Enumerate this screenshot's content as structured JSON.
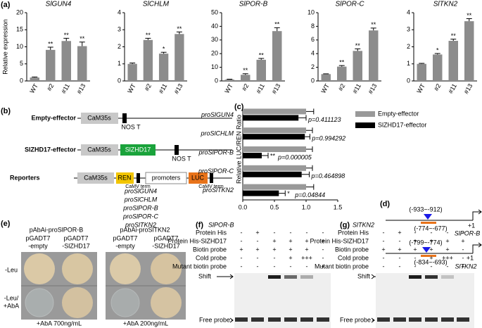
{
  "panel_labels": [
    "(a)",
    "(b)",
    "(c)",
    "(d)",
    "(e)",
    "(f)",
    "(g)"
  ],
  "chart_data": [
    {
      "type": "bar",
      "title": "SlGUN4",
      "ylabel": "Relative expression",
      "categories": [
        "WT",
        "#2",
        "#11",
        "#13"
      ],
      "values": [
        1.0,
        9.1,
        11.7,
        10.2
      ],
      "errors": [
        0.15,
        0.8,
        0.8,
        1.2
      ],
      "sig": [
        null,
        "**",
        "**",
        "**"
      ],
      "color": "#8c8c8c",
      "ylim": [
        0,
        20
      ],
      "yticks": [
        0,
        5,
        10,
        15,
        20
      ]
    },
    {
      "type": "bar",
      "title": "SlCHLM",
      "categories": [
        "WT",
        "#2",
        "#11",
        "#13"
      ],
      "values": [
        1.0,
        2.4,
        1.6,
        2.75
      ],
      "errors": [
        0.05,
        0.1,
        0.08,
        0.12
      ],
      "sig": [
        null,
        "**",
        "*",
        "**"
      ],
      "color": "#8c8c8c",
      "ylim": [
        0,
        4
      ],
      "yticks": [
        0,
        1,
        2,
        3,
        4
      ]
    },
    {
      "type": "bar",
      "title": "SlPOR-B",
      "categories": [
        "WT",
        "#2",
        "#11",
        "#13"
      ],
      "values": [
        1.0,
        4.5,
        15.5,
        36.5
      ],
      "errors": [
        0.3,
        0.8,
        1.0,
        2.5
      ],
      "sig": [
        null,
        "**",
        "**",
        "**"
      ],
      "color": "#8c8c8c",
      "ylim": [
        0,
        50
      ],
      "yticks": [
        0,
        10,
        20,
        30,
        40,
        50
      ]
    },
    {
      "type": "bar",
      "title": "SlPOR-C",
      "categories": [
        "WT",
        "#2",
        "#11",
        "#13"
      ],
      "values": [
        1.0,
        2.1,
        4.4,
        7.4
      ],
      "errors": [
        0.05,
        0.15,
        0.3,
        0.35
      ],
      "sig": [
        null,
        "**",
        "**",
        "**"
      ],
      "color": "#8c8c8c",
      "ylim": [
        0,
        10
      ],
      "yticks": [
        0,
        2,
        4,
        6,
        8,
        10
      ]
    },
    {
      "type": "bar",
      "title": "SlTKN2",
      "categories": [
        "WT",
        "#2",
        "#11",
        "#13"
      ],
      "values": [
        1.0,
        1.55,
        2.35,
        3.5
      ],
      "errors": [
        0.03,
        0.06,
        0.1,
        0.15
      ],
      "sig": [
        null,
        "*",
        "**",
        "**"
      ],
      "color": "#8c8c8c",
      "ylim": [
        0,
        4
      ],
      "yticks": [
        0,
        1,
        2,
        3,
        4
      ]
    },
    {
      "type": "hbar",
      "ylabel": "Relative LUC/REN Ratio",
      "categories": [
        "proSlGUN4",
        "proSlCHLM",
        "proSlPOR-B",
        "proSlPOR-C",
        "proSlTKN2"
      ],
      "series": [
        {
          "name": "Empty-effector",
          "color": "#999999",
          "values": [
            1,
            1,
            1,
            1,
            1
          ],
          "errors": [
            0.12,
            0.1,
            0.1,
            0.1,
            0.12
          ]
        },
        {
          "name": "SlZHD17-effector",
          "color": "#000000",
          "values": [
            0.88,
            0.98,
            0.3,
            0.93,
            0.57
          ],
          "errors": [
            0.12,
            0.08,
            0.1,
            0.12,
            0.1
          ],
          "sig": [
            null,
            null,
            "**",
            null,
            "*"
          ],
          "p_labels": [
            "p=0.411123",
            "p=0.994292",
            "p=0.000005",
            "p=0.464898",
            "p=0.04844"
          ]
        }
      ],
      "xlim": [
        0,
        1.5
      ],
      "xticks": [
        {
          "value": 0,
          "label": "0.0"
        },
        {
          "value": 0.5,
          "label": "0.5"
        },
        {
          "value": 1,
          "label": "1.0"
        },
        {
          "value": 1.5,
          "label": "1.5"
        }
      ]
    }
  ],
  "diagram_b": {
    "rows": [
      {
        "label": "Empty-effector",
        "parts": [
          "CaM35s",
          "NOS T"
        ]
      },
      {
        "label": "SlZHD17-effector",
        "parts": [
          "CaM35s",
          "SlZHD17",
          "NOS T"
        ]
      },
      {
        "label": "Reporters",
        "parts": [
          "CaM35s",
          "REN",
          "CaMV term",
          "promoters",
          "LUC",
          "CaMV term"
        ]
      }
    ],
    "promoters": [
      "proSlGUN4",
      "proSlCHLM",
      "proSlPOR-B",
      "proSlPOR-C",
      "proSlTKN2"
    ]
  },
  "diagram_d": [
    {
      "site": "(-933~-912)",
      "probe": "(-774~-677)",
      "tss": "+1",
      "gene": "SlPOR-B"
    },
    {
      "site": "(-799~-774)",
      "probe": "(-834~-693)",
      "tss": "+1",
      "gene": "SlTKN2"
    }
  ],
  "panel_e": {
    "groups": [
      "pAbAi-proSlPOR-B",
      "pAbAi-proSlTKN2"
    ],
    "columns": [
      [
        "pGADT7",
        "-empty"
      ],
      [
        "pGADT7",
        "-SlZHD17"
      ],
      [
        "pGADT7",
        "-empty"
      ],
      [
        "pGADT7",
        "-SlZHD17"
      ]
    ],
    "rows": [
      [
        "-Leu"
      ],
      [
        "-Leu/",
        "+AbA"
      ]
    ],
    "footers": [
      "+AbA 700ng/mL",
      "+AbA 200ng/mL"
    ]
  },
  "panel_f": {
    "title": "SlPOR-B",
    "rows": [
      {
        "label": "Protein His",
        "marks": [
          "-",
          "+",
          "-",
          "-",
          "-",
          "-"
        ]
      },
      {
        "label": "Protein His-SlZHD17",
        "marks": [
          "-",
          "-",
          "+",
          "+",
          "+",
          "+"
        ]
      },
      {
        "label": "Biotin probe",
        "marks": [
          "+",
          "+",
          "+",
          "+",
          "+",
          "-"
        ]
      },
      {
        "label": "Cold probe",
        "marks": [
          "-",
          "-",
          "-",
          "+",
          "+++",
          "-"
        ]
      },
      {
        "label": "Mutant biotin probe",
        "marks": [
          "-",
          "-",
          "-",
          "-",
          "-",
          "+"
        ]
      }
    ],
    "shift": "Shift",
    "free": "Free probe"
  },
  "panel_g": {
    "title": "SlTKN2",
    "rows": [
      {
        "label": "Protein His",
        "marks": [
          "-",
          "+",
          "-",
          "-",
          "-",
          "-"
        ]
      },
      {
        "label": "Protein His-SlZHD17",
        "marks": [
          "-",
          "-",
          "+",
          "+",
          "+",
          "+"
        ]
      },
      {
        "label": "Biotin probe",
        "marks": [
          "+",
          "+",
          "+",
          "+",
          "+",
          "-"
        ]
      },
      {
        "label": "Cold probe",
        "marks": [
          "-",
          "-",
          "-",
          "+",
          "+++",
          "-"
        ]
      },
      {
        "label": "Mutant biotin probe",
        "marks": [
          "-",
          "-",
          "-",
          "-",
          "-",
          "+"
        ]
      }
    ],
    "shift": "Shift",
    "free": "Free probe"
  }
}
